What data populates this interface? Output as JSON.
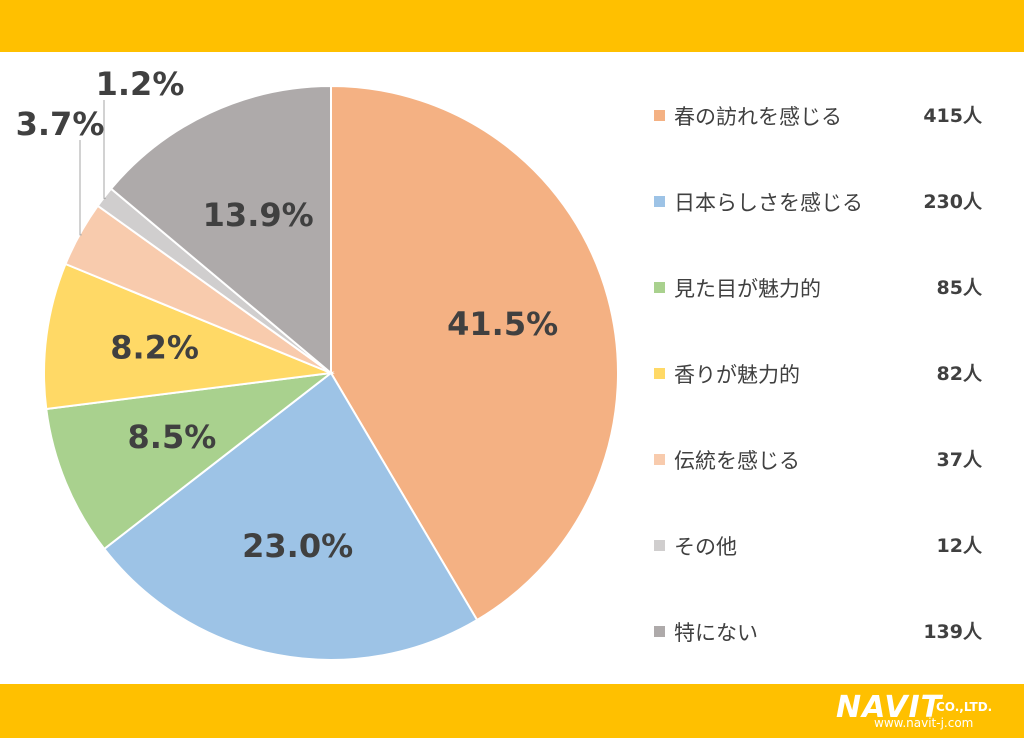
{
  "chart_data": {
    "type": "pie",
    "categories": [
      "春の訪れを感じる",
      "日本らしさを感じる",
      "見た目が魅力的",
      "香りが魅力的",
      "伝統を感じる",
      "その他",
      "特にない"
    ],
    "values": [
      415,
      230,
      85,
      82,
      37,
      12,
      139
    ],
    "value_labels": [
      "415人",
      "230人",
      "85人",
      "82人",
      "37人",
      "12人",
      "139人"
    ],
    "percent_labels": [
      "41.5%",
      "23.0%",
      "8.5%",
      "8.2%",
      "3.7%",
      "1.2%",
      "13.9%"
    ],
    "colors": [
      "#F4B183",
      "#9DC3E6",
      "#A9D18E",
      "#FFD966",
      "#F8CBAD",
      "#D0CECE",
      "#AEAAAA"
    ],
    "start": "12 o'clock",
    "direction": "clockwise",
    "legend_position": "right"
  },
  "brand": {
    "name": "NAVIT",
    "suffix": "CO.,LTD.",
    "url": "www.navit-j.com"
  }
}
